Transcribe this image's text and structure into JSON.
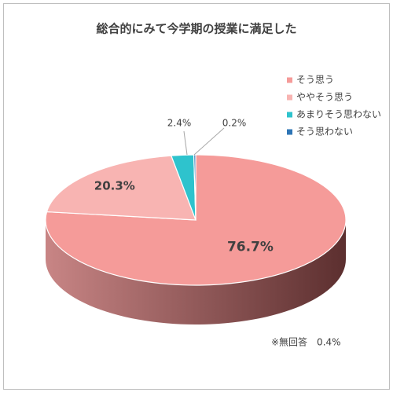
{
  "chart_data": {
    "type": "pie3d",
    "title": "総合的にみて今学期の授業に満足した",
    "categories": [
      "そう思う",
      "ややそう思う",
      "あまりそう思わない",
      "そう思わない"
    ],
    "values": [
      76.7,
      20.3,
      2.4,
      0.2
    ],
    "value_labels": [
      "76.7%",
      "20.3%",
      "2.4%",
      "0.2%"
    ],
    "colors": [
      "#f59b99",
      "#f8b4b2",
      "#2ec3cd",
      "#2e75b6"
    ],
    "side_colors": [
      [
        "#c88585",
        "#5c2f2f"
      ],
      [
        "#c99897",
        "#7a5453"
      ],
      [
        "#1f8f97",
        "#166a70"
      ],
      [
        "#1f5585",
        "#173f63"
      ]
    ],
    "legend": "upper right",
    "annotation": "※無回答　0.4%"
  }
}
